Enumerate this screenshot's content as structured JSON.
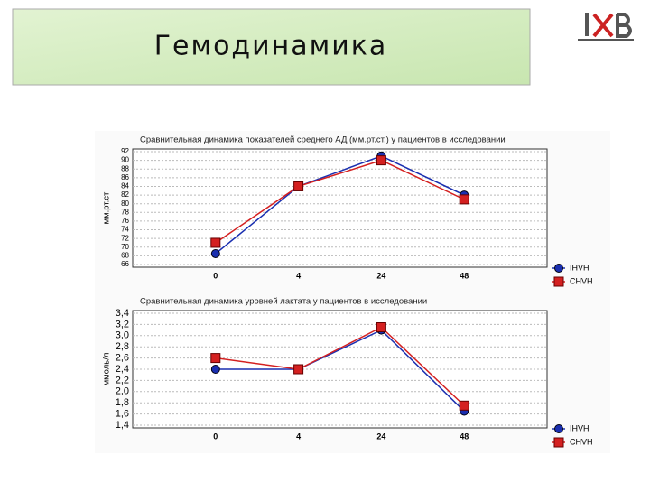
{
  "header": {
    "title": "Гемодинамика"
  },
  "chart_data": [
    {
      "type": "line",
      "title": "Сравнительная динамика показателей среднего АД (мм.рт.ст.) у пациентов в исследовании",
      "y_label": "мм.рт.ст",
      "categories": [
        "0",
        "4",
        "24",
        "48"
      ],
      "series": [
        {
          "name": "IHVH",
          "color": "#1a2fb0",
          "marker": "circle",
          "values": [
            68.5,
            84,
            91,
            82
          ]
        },
        {
          "name": "CHVH",
          "color": "#d42020",
          "marker": "square",
          "values": [
            71,
            84,
            90,
            81
          ]
        }
      ],
      "ylim": [
        66,
        92
      ],
      "yticks": [
        66,
        68,
        70,
        72,
        74,
        76,
        78,
        80,
        82,
        84,
        86,
        88,
        90,
        92
      ],
      "grid": true,
      "legend": "lower-right-outside"
    },
    {
      "type": "line",
      "title": "Сравнительная динамика уровней лактата у пациентов в исследовании",
      "y_label": "ммоль/л",
      "categories": [
        "0",
        "4",
        "24",
        "48"
      ],
      "series": [
        {
          "name": "IHVH",
          "color": "#1a2fb0",
          "marker": "circle",
          "values": [
            2.4,
            2.4,
            3.1,
            1.65
          ]
        },
        {
          "name": "CHVH",
          "color": "#d42020",
          "marker": "square",
          "values": [
            2.6,
            2.4,
            3.15,
            1.75
          ]
        }
      ],
      "ylim": [
        1.4,
        3.4
      ],
      "yticks": [
        {
          "value": 1.4,
          "label": "1,4"
        },
        {
          "value": 1.6,
          "label": "1,6"
        },
        {
          "value": 1.8,
          "label": "1,8"
        },
        {
          "value": 2.0,
          "label": "2,0"
        },
        {
          "value": 2.2,
          "label": "2,2"
        },
        {
          "value": 2.4,
          "label": "2,4"
        },
        {
          "value": 2.6,
          "label": "2,6"
        },
        {
          "value": 2.8,
          "label": "2,8"
        },
        {
          "value": 3.0,
          "label": "3,0"
        },
        {
          "value": 3.2,
          "label": "3,2"
        },
        {
          "value": 3.4,
          "label": "3,4"
        }
      ],
      "grid": true,
      "legend": "lower-right-outside"
    }
  ]
}
